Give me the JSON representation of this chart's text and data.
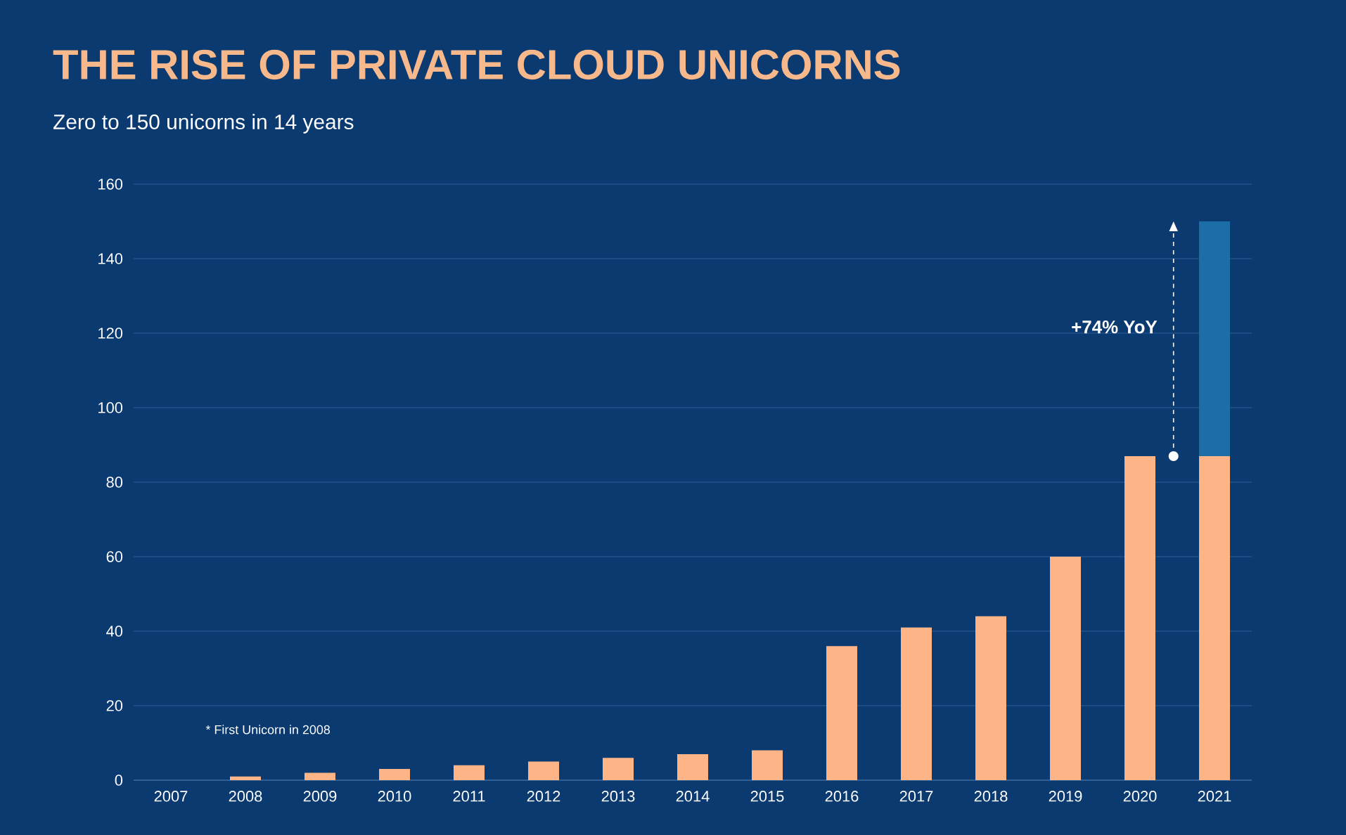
{
  "chart_data": {
    "type": "bar",
    "stacked": true,
    "title": "THE RISE OF PRIVATE CLOUD UNICORNS",
    "subtitle": "Zero to 150 unicorns in 14 years",
    "categories": [
      "2007",
      "2008",
      "2009",
      "2010",
      "2011",
      "2012",
      "2013",
      "2014",
      "2015",
      "2016",
      "2017",
      "2018",
      "2019",
      "2020",
      "2021"
    ],
    "series": [
      {
        "color": "#fdb587",
        "values": [
          0,
          1,
          2,
          3,
          4,
          5,
          6,
          7,
          8,
          36,
          41,
          44,
          60,
          87,
          87
        ]
      },
      {
        "color": "#1b6ea6",
        "values": [
          null,
          null,
          null,
          null,
          null,
          null,
          null,
          null,
          null,
          null,
          null,
          null,
          null,
          null,
          63
        ]
      }
    ],
    "ylim": [
      0,
      160
    ],
    "yticks": [
      0,
      20,
      40,
      60,
      80,
      100,
      120,
      140,
      160
    ],
    "grid": "y",
    "annotations": [
      "* First Unicorn in 2008",
      "+74% YoY"
    ]
  }
}
